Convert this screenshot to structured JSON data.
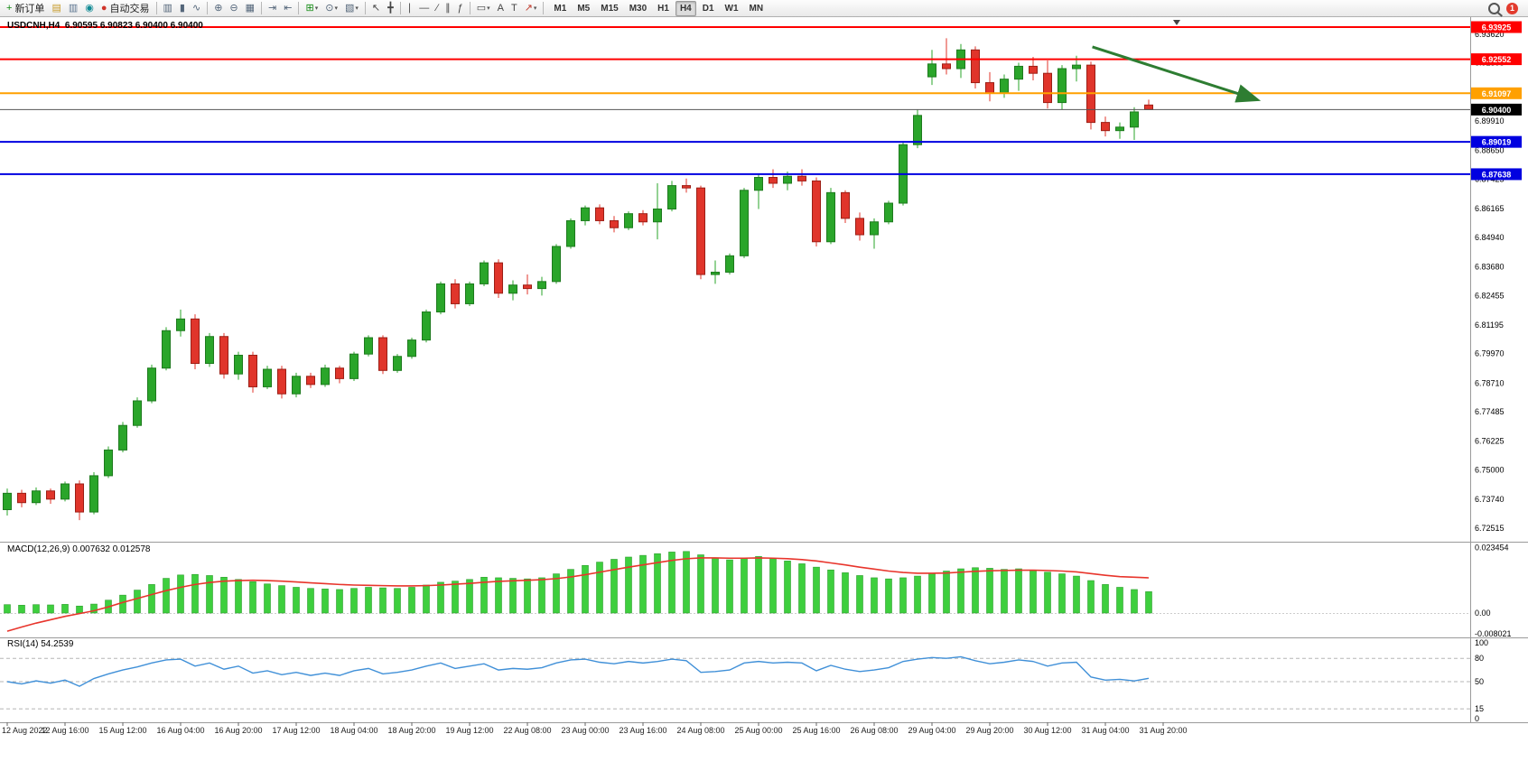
{
  "toolbar": {
    "dropdown_glyph": "▾",
    "notification_count": "1",
    "active_timeframe": "H4",
    "timeframes": [
      "M1",
      "M5",
      "M15",
      "M30",
      "H1",
      "H4",
      "D1",
      "W1",
      "MN"
    ],
    "buttons": [
      {
        "name": "new-order-button",
        "glyph": "+",
        "color": "#128a12",
        "label": "新订单"
      },
      {
        "name": "new-chart-button",
        "glyph": "▤",
        "color": "#c79b28"
      },
      {
        "name": "print-button",
        "glyph": "▥",
        "color": "#5d7590"
      },
      {
        "name": "community-button",
        "glyph": "◉",
        "color": "#0f8a94"
      },
      {
        "name": "autotrading-button",
        "glyph": "●",
        "color": "#d0342a",
        "label": "自动交易"
      },
      {
        "sep": true
      },
      {
        "name": "bar-chart-button",
        "glyph": "▥",
        "color": "#54667a"
      },
      {
        "name": "candlestick-chart-button",
        "glyph": "▮",
        "color": "#54667a"
      },
      {
        "name": "line-chart-button",
        "glyph": "∿",
        "color": "#54667a"
      },
      {
        "sep": true
      },
      {
        "name": "zoom-in-button",
        "glyph": "⊕",
        "color": "#54667a"
      },
      {
        "name": "zoom-out-button",
        "glyph": "⊖",
        "color": "#54667a"
      },
      {
        "name": "tile-windows-button",
        "glyph": "▦",
        "color": "#54667a"
      },
      {
        "sep": true
      },
      {
        "name": "auto-scroll-button",
        "glyph": "⇥",
        "color": "#54667a"
      },
      {
        "name": "chart-shift-button",
        "glyph": "⇤",
        "color": "#54667a"
      },
      {
        "sep": true
      },
      {
        "name": "indicators-button",
        "glyph": "⊞",
        "color": "#128a12",
        "dropdown": true
      },
      {
        "name": "periods-button",
        "glyph": "⊙",
        "color": "#54667a",
        "dropdown": true
      },
      {
        "name": "templates-button",
        "glyph": "▧",
        "color": "#54667a",
        "dropdown": true
      },
      {
        "sep": true
      },
      {
        "name": "cursor-button",
        "glyph": "↖",
        "color": "#444444"
      },
      {
        "name": "crosshair-button",
        "glyph": "╋",
        "color": "#444444"
      },
      {
        "sep": true
      },
      {
        "name": "vertical-line-button",
        "glyph": "∣",
        "color": "#444444"
      },
      {
        "name": "horizontal-line-button",
        "glyph": "―",
        "color": "#444444"
      },
      {
        "name": "trendline-button",
        "glyph": "∕",
        "color": "#444444"
      },
      {
        "name": "channel-button",
        "glyph": "∥",
        "color": "#444444"
      },
      {
        "name": "fibonacci-button",
        "glyph": "ƒ",
        "color": "#444444"
      },
      {
        "sep": true
      },
      {
        "name": "shapes-button",
        "glyph": "▭",
        "color": "#444444",
        "dropdown": true
      },
      {
        "name": "text-button",
        "glyph": "A",
        "color": "#444444"
      },
      {
        "name": "text-label-button",
        "glyph": "T",
        "color": "#444444"
      },
      {
        "name": "arrows-button",
        "glyph": "↗",
        "color": "#c0392b",
        "dropdown": true
      },
      {
        "sep": true
      }
    ]
  },
  "chart": {
    "symbol_ohlc_label": "USDCNH,H4  6.90595 6.90823 6.90400 6.90400"
  },
  "macd": {
    "label": "MACD(12,26,9) 0.007632 0.012578"
  },
  "rsi": {
    "label": "RSI(14) 54.2539"
  },
  "chart_data": {
    "type": "candlestick",
    "symbol": "USDCNH",
    "timeframe": "H4",
    "current_bar": {
      "open": 6.90595,
      "high": 6.90823,
      "low": 6.904,
      "close": 6.904
    },
    "ylim": [
      6.7193,
      6.9435
    ],
    "bull_color": "#2aa52a",
    "bear_color": "#e0352b",
    "price_axis_ticks": [
      "6.93620",
      "6.92395",
      "6.91170",
      "6.89910",
      "6.88650",
      "6.87425",
      "6.86165",
      "6.84940",
      "6.83680",
      "6.82455",
      "6.81195",
      "6.79970",
      "6.78710",
      "6.77485",
      "6.76225",
      "6.75000",
      "6.73740",
      "6.72515"
    ],
    "levels": [
      {
        "price": 6.93925,
        "label": "6.93925",
        "color": "#ff0000",
        "width": 2
      },
      {
        "price": 6.92552,
        "label": "6.92552",
        "color": "#ff0000",
        "width": 2
      },
      {
        "price": 6.91097,
        "label": "6.91097",
        "color": "#ffa000",
        "width": 2
      },
      {
        "price": 6.89019,
        "label": "6.89019",
        "color": "#0000e0",
        "width": 2
      },
      {
        "price": 6.87638,
        "label": "6.87638",
        "color": "#0000e0",
        "width": 2
      }
    ],
    "current_price_line": {
      "price": 6.904,
      "label": "6.90400",
      "color": "#000000"
    },
    "candles": [
      [
        6.733,
        6.742,
        6.7305,
        6.74
      ],
      [
        6.74,
        6.7415,
        6.734,
        6.736
      ],
      [
        6.736,
        6.7425,
        6.735,
        6.741
      ],
      [
        6.741,
        6.742,
        6.7355,
        6.7375
      ],
      [
        6.7375,
        6.745,
        6.7365,
        6.744
      ],
      [
        6.744,
        6.7455,
        6.7285,
        6.732
      ],
      [
        6.732,
        6.749,
        6.731,
        6.7475
      ],
      [
        6.7475,
        6.76,
        6.7465,
        6.7585
      ],
      [
        6.7585,
        6.7705,
        6.7575,
        6.769
      ],
      [
        6.769,
        6.781,
        6.768,
        6.7795
      ],
      [
        6.7795,
        6.795,
        6.7785,
        6.7935
      ],
      [
        6.7935,
        6.811,
        6.7925,
        6.8095
      ],
      [
        6.8095,
        6.8185,
        6.807,
        6.8145
      ],
      [
        6.8145,
        6.8165,
        6.793,
        6.7955
      ],
      [
        6.7955,
        6.8085,
        6.794,
        6.807
      ],
      [
        6.807,
        6.8085,
        6.789,
        6.791
      ],
      [
        6.791,
        6.8005,
        6.7885,
        6.799
      ],
      [
        6.799,
        6.8005,
        6.783,
        6.7855
      ],
      [
        6.7855,
        6.7945,
        6.7845,
        6.793
      ],
      [
        6.793,
        6.7945,
        6.7805,
        6.7825
      ],
      [
        6.7825,
        6.7915,
        6.781,
        6.79
      ],
      [
        6.79,
        6.7915,
        6.785,
        6.7865
      ],
      [
        6.7865,
        6.795,
        6.7855,
        6.7935
      ],
      [
        6.7935,
        6.7945,
        6.787,
        6.789
      ],
      [
        6.789,
        6.8005,
        6.788,
        6.7995
      ],
      [
        6.7995,
        6.8075,
        6.7985,
        6.8065
      ],
      [
        6.8065,
        6.8075,
        6.791,
        6.7925
      ],
      [
        6.7925,
        6.7995,
        6.7915,
        6.7985
      ],
      [
        6.7985,
        6.8065,
        6.7975,
        6.8055
      ],
      [
        6.8055,
        6.8185,
        6.8045,
        6.8175
      ],
      [
        6.8175,
        6.8305,
        6.8165,
        6.8295
      ],
      [
        6.8295,
        6.8315,
        6.819,
        6.821
      ],
      [
        6.821,
        6.8305,
        6.82,
        6.8295
      ],
      [
        6.8295,
        6.8395,
        6.8285,
        6.8385
      ],
      [
        6.8385,
        6.84,
        6.8235,
        6.8255
      ],
      [
        6.8255,
        6.831,
        6.8225,
        6.829
      ],
      [
        6.829,
        6.8335,
        6.825,
        6.8275
      ],
      [
        6.8275,
        6.8325,
        6.8245,
        6.8305
      ],
      [
        6.8305,
        6.8465,
        6.8295,
        6.8455
      ],
      [
        6.8455,
        6.8575,
        6.8445,
        6.8565
      ],
      [
        6.8565,
        6.863,
        6.8545,
        6.862
      ],
      [
        6.862,
        6.8635,
        6.855,
        6.8565
      ],
      [
        6.8565,
        6.8585,
        6.8515,
        6.8535
      ],
      [
        6.8535,
        6.8605,
        6.8525,
        6.8595
      ],
      [
        6.8595,
        6.861,
        6.8545,
        6.856
      ],
      [
        6.856,
        6.8725,
        6.8485,
        6.8615
      ],
      [
        6.8615,
        6.8735,
        6.8605,
        6.8715
      ],
      [
        6.8715,
        6.8745,
        6.8685,
        6.8705
      ],
      [
        6.8705,
        6.8715,
        6.8315,
        6.8335
      ],
      [
        6.8335,
        6.8395,
        6.8295,
        6.8345
      ],
      [
        6.8345,
        6.8425,
        6.8335,
        6.8415
      ],
      [
        6.8415,
        6.8705,
        6.8405,
        6.8695
      ],
      [
        6.8695,
        6.8765,
        6.8615,
        6.875
      ],
      [
        6.875,
        6.8785,
        6.8705,
        6.8725
      ],
      [
        6.8725,
        6.8775,
        6.8695,
        6.8755
      ],
      [
        6.8755,
        6.8785,
        6.8715,
        6.8735
      ],
      [
        6.8735,
        6.875,
        6.8455,
        6.8475
      ],
      [
        6.8475,
        6.8705,
        6.8465,
        6.8685
      ],
      [
        6.8685,
        6.8695,
        6.8555,
        6.8575
      ],
      [
        6.8575,
        6.86,
        6.848,
        6.8505
      ],
      [
        6.8505,
        6.8575,
        6.8445,
        6.856
      ],
      [
        6.856,
        6.865,
        6.855,
        6.864
      ],
      [
        6.864,
        6.8905,
        6.863,
        6.889
      ],
      [
        6.889,
        6.904,
        6.8875,
        6.9015
      ],
      [
        6.918,
        6.9295,
        6.9145,
        6.9235
      ],
      [
        6.9235,
        6.9345,
        6.919,
        6.9215
      ],
      [
        6.9215,
        6.932,
        6.9175,
        6.9295
      ],
      [
        6.9295,
        6.931,
        6.913,
        6.9155
      ],
      [
        6.9155,
        6.92,
        6.9075,
        6.911
      ],
      [
        6.911,
        6.919,
        6.909,
        6.917
      ],
      [
        6.917,
        6.924,
        6.912,
        6.9225
      ],
      [
        6.9225,
        6.9265,
        6.9165,
        6.9195
      ],
      [
        6.9195,
        6.925,
        6.9045,
        6.907
      ],
      [
        6.907,
        6.923,
        6.904,
        6.9215
      ],
      [
        6.9215,
        6.927,
        6.916,
        6.923
      ],
      [
        6.923,
        6.9245,
        6.8955,
        6.8985
      ],
      [
        6.8985,
        6.901,
        6.8925,
        6.895
      ],
      [
        6.895,
        6.8985,
        6.8915,
        6.8965
      ],
      [
        6.8965,
        6.905,
        6.891,
        6.903
      ],
      [
        6.90595,
        6.90823,
        6.904,
        6.904
      ]
    ],
    "macd": {
      "hist_color": "#3ecf3e",
      "signal_color": "#e8352c",
      "ylim": [
        -0.008021,
        0.023454
      ],
      "axis_labels": [
        "0.023454",
        "0.00",
        "-0.008021"
      ],
      "histogram": [
        0.003,
        0.0028,
        0.003,
        0.0029,
        0.0031,
        0.0025,
        0.0032,
        0.0046,
        0.0064,
        0.0082,
        0.0102,
        0.0124,
        0.0136,
        0.0138,
        0.0134,
        0.0128,
        0.012,
        0.0112,
        0.0104,
        0.0098,
        0.0092,
        0.0088,
        0.0086,
        0.0084,
        0.0088,
        0.0092,
        0.009,
        0.0088,
        0.0092,
        0.01,
        0.011,
        0.0114,
        0.012,
        0.0128,
        0.0126,
        0.0124,
        0.0122,
        0.0126,
        0.014,
        0.0156,
        0.017,
        0.0182,
        0.0192,
        0.02,
        0.0206,
        0.0212,
        0.0218,
        0.022,
        0.0208,
        0.0196,
        0.019,
        0.0196,
        0.0202,
        0.0194,
        0.0186,
        0.0176,
        0.0164,
        0.0154,
        0.0144,
        0.0134,
        0.0126,
        0.0122,
        0.0126,
        0.0132,
        0.0142,
        0.015,
        0.0158,
        0.0162,
        0.016,
        0.0156,
        0.0158,
        0.0154,
        0.0146,
        0.014,
        0.0132,
        0.0116,
        0.0102,
        0.0092,
        0.0084,
        0.007632
      ],
      "signal": [
        -0.0065,
        -0.005,
        -0.0036,
        -0.0024,
        -0.0012,
        -0.0002,
        0.0008,
        0.0022,
        0.0038,
        0.0052,
        0.0066,
        0.008,
        0.0092,
        0.0102,
        0.0109,
        0.0114,
        0.0116,
        0.0117,
        0.0116,
        0.0114,
        0.0111,
        0.0108,
        0.0105,
        0.0102,
        0.01,
        0.0099,
        0.0098,
        0.0097,
        0.0097,
        0.0098,
        0.01,
        0.0103,
        0.0106,
        0.011,
        0.0113,
        0.0115,
        0.0117,
        0.0119,
        0.0123,
        0.0129,
        0.0137,
        0.0146,
        0.0155,
        0.0164,
        0.0172,
        0.018,
        0.0188,
        0.0194,
        0.0197,
        0.0197,
        0.0196,
        0.0196,
        0.0197,
        0.0196,
        0.0194,
        0.0191,
        0.0186,
        0.0179,
        0.0172,
        0.0164,
        0.0157,
        0.015,
        0.0145,
        0.0142,
        0.0142,
        0.0143,
        0.0146,
        0.0149,
        0.0151,
        0.0152,
        0.0153,
        0.0153,
        0.0152,
        0.015,
        0.0147,
        0.0141,
        0.0135,
        0.013,
        0.0128,
        0.012578
      ]
    },
    "rsi": {
      "line_color": "#4090d8",
      "ylim": [
        0,
        100
      ],
      "levels": [
        80,
        50,
        15
      ],
      "axis_labels": [
        "100",
        "80",
        "50",
        "15",
        "0"
      ],
      "values": [
        50,
        47,
        51,
        48,
        52,
        44,
        54,
        60,
        65,
        69,
        74,
        78,
        79,
        70,
        74,
        66,
        70,
        61,
        64,
        59,
        62,
        58,
        61,
        58,
        64,
        67,
        60,
        62,
        65,
        70,
        74,
        67,
        70,
        73,
        65,
        67,
        66,
        68,
        74,
        78,
        79,
        75,
        73,
        76,
        74,
        76,
        79,
        77,
        62,
        63,
        65,
        74,
        76,
        74,
        75,
        74,
        64,
        71,
        66,
        63,
        65,
        68,
        76,
        79,
        81,
        80,
        82,
        77,
        73,
        75,
        78,
        76,
        70,
        74,
        75,
        56,
        52,
        53,
        51,
        54.2539
      ]
    },
    "time_labels": [
      "12 Aug 2022",
      "12 Aug 16:00",
      "15 Aug 12:00",
      "16 Aug 04:00",
      "16 Aug 20:00",
      "17 Aug 12:00",
      "18 Aug 04:00",
      "18 Aug 20:00",
      "19 Aug 12:00",
      "22 Aug 08:00",
      "23 Aug 00:00",
      "23 Aug 16:00",
      "24 Aug 08:00",
      "25 Aug 00:00",
      "25 Aug 16:00",
      "26 Aug 08:00",
      "29 Aug 04:00",
      "29 Aug 20:00",
      "30 Aug 12:00",
      "31 Aug 04:00",
      "31 Aug 20:00"
    ],
    "annotations": [
      {
        "type": "arrow",
        "from_bar": 75.1,
        "from_price": 6.9308,
        "to_bar": 86.4,
        "to_price": 6.9084,
        "color": "#2e7d32",
        "width": 3
      }
    ]
  }
}
